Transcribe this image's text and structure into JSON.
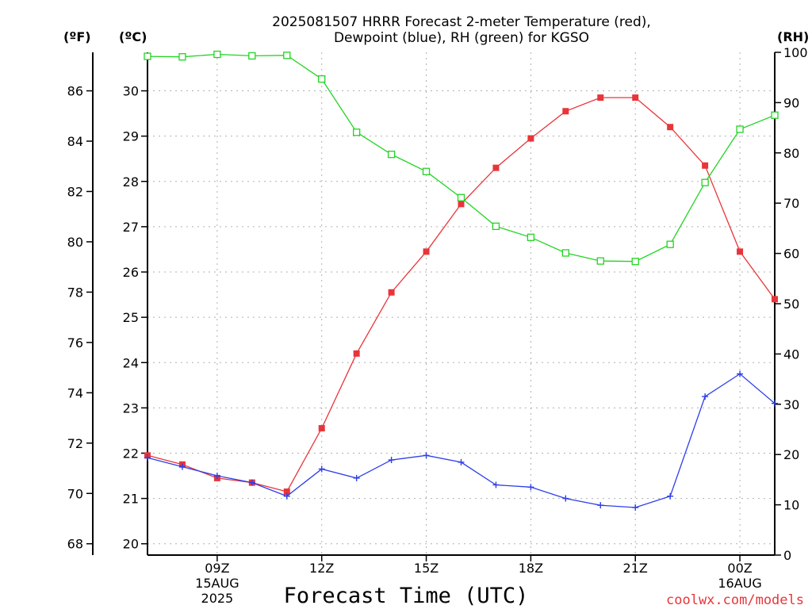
{
  "chart_data": {
    "type": "line",
    "title_line1": "2025081507 HRRR Forecast 2-meter Temperature (red),",
    "title_line2": "Dewpoint (blue), RH (green) for KGSO",
    "xlabel": "Forecast Time (UTC)",
    "credit": "coolwx.com/models",
    "unit_labels": {
      "fahrenheit": "(ºF)",
      "celsius": "(ºC)",
      "rh": "(RH)"
    },
    "x_hours": [
      7,
      8,
      9,
      10,
      11,
      12,
      13,
      14,
      15,
      16,
      17,
      18,
      19,
      20,
      21,
      22,
      23,
      24,
      25
    ],
    "x_ticks": [
      {
        "hour": 9,
        "lines": [
          "09Z",
          "15AUG",
          "2025"
        ]
      },
      {
        "hour": 12,
        "lines": [
          "12Z"
        ]
      },
      {
        "hour": 15,
        "lines": [
          "15Z"
        ]
      },
      {
        "hour": 18,
        "lines": [
          "18Z"
        ]
      },
      {
        "hour": 21,
        "lines": [
          "21Z"
        ]
      },
      {
        "hour": 24,
        "lines": [
          "00Z",
          "16AUG"
        ]
      }
    ],
    "celsius_axis": {
      "min": 19.75,
      "max": 30.85,
      "ticks": [
        20,
        21,
        22,
        23,
        24,
        25,
        26,
        27,
        28,
        29,
        30
      ]
    },
    "fahrenheit_ticks": [
      68,
      70,
      72,
      74,
      76,
      78,
      80,
      82,
      84,
      86
    ],
    "rh_axis": {
      "min": 0,
      "max": 100,
      "ticks": [
        0,
        10,
        20,
        30,
        40,
        50,
        60,
        70,
        80,
        90,
        100
      ]
    },
    "series": [
      {
        "name": "Temperature",
        "color": "#e8353a",
        "marker": "filled-square",
        "axis": "celsius",
        "values": [
          21.95,
          21.75,
          21.45,
          21.35,
          21.15,
          22.55,
          24.2,
          25.55,
          26.45,
          27.5,
          28.3,
          28.95,
          29.55,
          29.85,
          29.85,
          29.2,
          28.35,
          26.45,
          25.4
        ]
      },
      {
        "name": "Dewpoint",
        "color": "#2d3ee8",
        "marker": "plus",
        "axis": "celsius",
        "values": [
          21.9,
          21.7,
          21.5,
          21.35,
          21.05,
          21.65,
          21.45,
          21.85,
          21.95,
          21.8,
          21.3,
          21.25,
          21.0,
          20.85,
          20.8,
          21.05,
          23.25,
          23.75,
          23.1
        ]
      },
      {
        "name": "RH",
        "color": "#22d422",
        "marker": "open-square",
        "axis": "rh",
        "values": [
          99.2,
          99.1,
          99.6,
          99.3,
          99.4,
          94.7,
          84.1,
          79.7,
          76.3,
          71.1,
          65.4,
          63.2,
          60.1,
          58.5,
          58.4,
          61.8,
          74.1,
          84.7,
          87.5
        ]
      }
    ],
    "grid": true
  }
}
